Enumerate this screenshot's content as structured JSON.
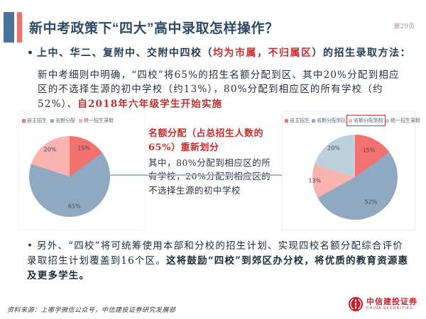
{
  "header": {
    "title": "新中考政策下“四大”高中录取怎样操作？",
    "page_number": "第29页"
  },
  "bullets": {
    "marker": "•",
    "first": {
      "pre": "上中、华二、复附中、交附中四校（",
      "red": "均为市属，不归属区",
      "post": "）的招生录取方法："
    },
    "second": {
      "pre": "另外、“四校”将可统筹使用本部和分校的招生计划、实现四校名额分配综合评价录取招生计划覆盖到16个区。",
      "bold": "这将鼓励“四校”到郊区办分校，将优质的教育资源惠及更多学生。"
    }
  },
  "paragraph": {
    "main": "新中考细则中明确，“四校”将65%的招生名额分配到区、其中20%分配到相应区的不选择生源的初中学校（约13%），80%分配到相应区的所有学校（约52%）、",
    "red": "自2018年六年级学生开始实施"
  },
  "annotation": {
    "title": "名额分配（占总招生人数的65%）重新划分",
    "body": "其中，80%分配到相应区的所有学校，20%分配到相应区的不选择生源的初中学校"
  },
  "chart_data": [
    {
      "type": "pie",
      "title": "",
      "labels": [
        "自主招生",
        "名额分配",
        "统一招生录取"
      ],
      "values": [
        15,
        65,
        20
      ],
      "value_labels": [
        "15%",
        "65%",
        "20%"
      ],
      "colors": [
        "#f1726e",
        "#90a9c2",
        "#f9b3b1"
      ],
      "label_radius": [
        0.78,
        0.75,
        0.82
      ],
      "legend_position": "top"
    },
    {
      "type": "pie",
      "title": "",
      "labels": [
        "自主招生",
        "名额分配到区",
        "名额分配到校",
        "统一招生录取"
      ],
      "values": [
        15,
        52,
        13,
        20
      ],
      "value_labels": [
        "15%",
        "52%",
        "13%",
        "20%"
      ],
      "colors": [
        "#f1726e",
        "#90a9c2",
        "#f9b3b1",
        "#bdd0dd"
      ],
      "label_radius": [
        0.72,
        0.7,
        0.95,
        0.85
      ],
      "highlighted_legend": "名额分配到校",
      "legend_position": "top"
    }
  ],
  "footer": {
    "source": "资料来源：上哪学微信公众号，中信建投证券研究发展部",
    "logo_cn": "中信建投证券",
    "logo_en": "CHINA SECURITIES"
  },
  "colors": {
    "title_navy": "#2e4a66",
    "accent_red": "#c03030",
    "bar_blue": "#46749c",
    "bar_red": "#f0706e",
    "arrow": "#a3b8ca",
    "legend_box_red": "#b5413c",
    "logo_red": "#c4222d"
  }
}
